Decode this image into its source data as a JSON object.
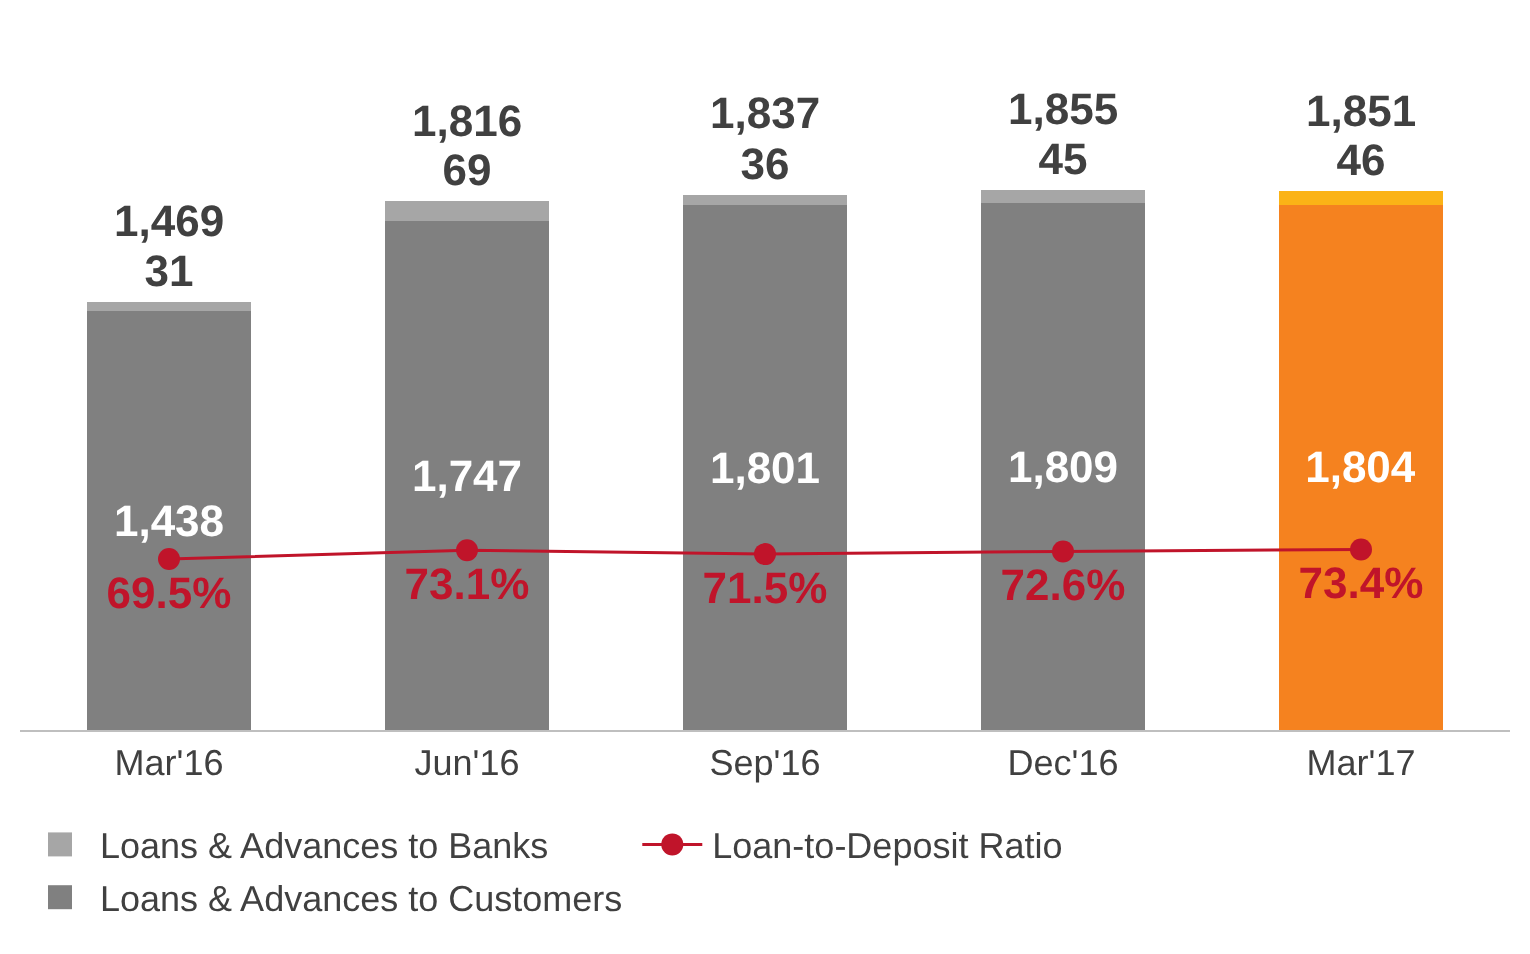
{
  "chart_data": {
    "type": "bar",
    "stacked": true,
    "categories": [
      "Mar'16",
      "Jun'16",
      "Sep'16",
      "Dec'16",
      "Mar'17"
    ],
    "series": [
      {
        "name": "Loans & Advances to Customers",
        "color": "#808080",
        "colors": [
          "#808080",
          "#808080",
          "#808080",
          "#808080",
          "#f5821f"
        ],
        "values": [
          1438,
          1747,
          1801,
          1809,
          1804
        ],
        "value_labels": [
          "1,438",
          "1,747",
          "1,801",
          "1,809",
          "1,804"
        ]
      },
      {
        "name": "Loans & Advances to Banks",
        "color": "#a6a6a6",
        "colors": [
          "#a6a6a6",
          "#a6a6a6",
          "#a6a6a6",
          "#a6a6a6",
          "#fbb316"
        ],
        "values": [
          31,
          69,
          36,
          45,
          46
        ],
        "value_labels": [
          "31",
          "69",
          "36",
          "45",
          "46"
        ]
      },
      {
        "name": "Loan-to-Deposit Ratio",
        "type": "line",
        "axis": "y2",
        "color": "#c0142a",
        "marker": "circle",
        "values": [
          69.5,
          73.1,
          71.5,
          72.6,
          73.4
        ],
        "value_labels": [
          "69.5%",
          "73.1%",
          "71.5%",
          "72.6%",
          "73.4%"
        ]
      }
    ],
    "totals": [
      "1,469",
      "1,816",
      "1,837",
      "1,855",
      "1,851"
    ],
    "data_labels": true,
    "legend": "bottom"
  }
}
